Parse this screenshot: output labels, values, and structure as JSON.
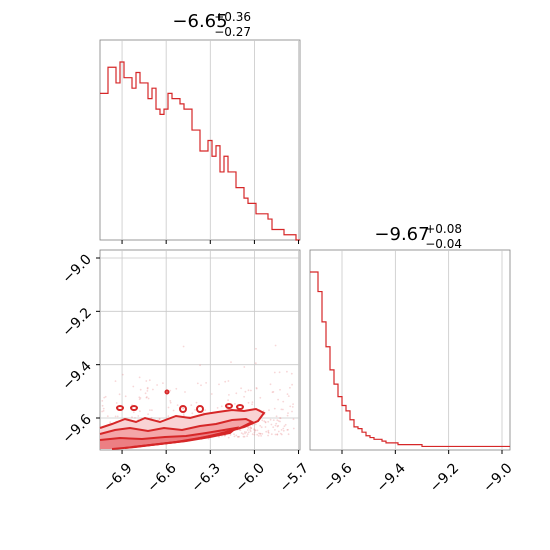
{
  "chart_data": [
    {
      "type": "histogram",
      "panel": "top-left marginal (parameter 1)",
      "title": {
        "value": "−6.65",
        "upper": "+0.36",
        "lower": "−0.27"
      },
      "xlim": [
        -7.05,
        -5.69
      ],
      "bins_start": -7.05,
      "bin_width": 0.0272,
      "counts": [
        28,
        28,
        33,
        33,
        30,
        34,
        31,
        31,
        29,
        32,
        30,
        30,
        27,
        29,
        25,
        24,
        25,
        28,
        27,
        27,
        26,
        25,
        25,
        21,
        21,
        17,
        17,
        19,
        16,
        18,
        13,
        16,
        13,
        13,
        10,
        10,
        8,
        7,
        7,
        5,
        5,
        5,
        4,
        2,
        2,
        2,
        1,
        1,
        1,
        0
      ],
      "color": "#d62728",
      "xgrid_ticks": [
        -6.9,
        -6.6,
        -6.3,
        -6.0,
        -5.7
      ]
    },
    {
      "type": "histogram",
      "panel": "bottom-right marginal (parameter 2)",
      "title": {
        "value": "−9.67",
        "upper": "+0.08",
        "lower": "−0.04"
      },
      "xlim": [
        -9.72,
        -8.97
      ],
      "bins_start": -9.72,
      "bin_width": 0.015,
      "counts": [
        100,
        100,
        89,
        72,
        58,
        45,
        37,
        30,
        25,
        22,
        17,
        13,
        12,
        10,
        8,
        7,
        6,
        6,
        5,
        4,
        4,
        4,
        3,
        3,
        3,
        3,
        3,
        3,
        2,
        2,
        2,
        2,
        2,
        2,
        2,
        2,
        2,
        2,
        2,
        2,
        2,
        2,
        2,
        2,
        2,
        2,
        2,
        2,
        2,
        2
      ],
      "color": "#d62728",
      "xticks": [
        -9.6,
        -9.4,
        -9.2,
        -9.0
      ],
      "xtick_labels": [
        "−9.6",
        "−9.4",
        "−9.2",
        "−9.0"
      ]
    },
    {
      "type": "scatter",
      "panel": "bottom-left 2D density (contours + scattered samples)",
      "xlim": [
        -7.05,
        -5.69
      ],
      "ylim": [
        -9.72,
        -8.97
      ],
      "xticks": [
        -6.9,
        -6.6,
        -6.3,
        -6.0,
        -5.7
      ],
      "xtick_labels": [
        "−6.9",
        "−6.6",
        "−6.3",
        "−6.0",
        "−5.7"
      ],
      "yticks": [
        -9.0,
        -9.2,
        -9.4,
        -9.6
      ],
      "ytick_labels": [
        "−9.0",
        "−9.2",
        "−9.4",
        "−9.6"
      ],
      "contour_color": "#d62728",
      "contour_fill": "#f4b6b8",
      "grid": true
    }
  ]
}
